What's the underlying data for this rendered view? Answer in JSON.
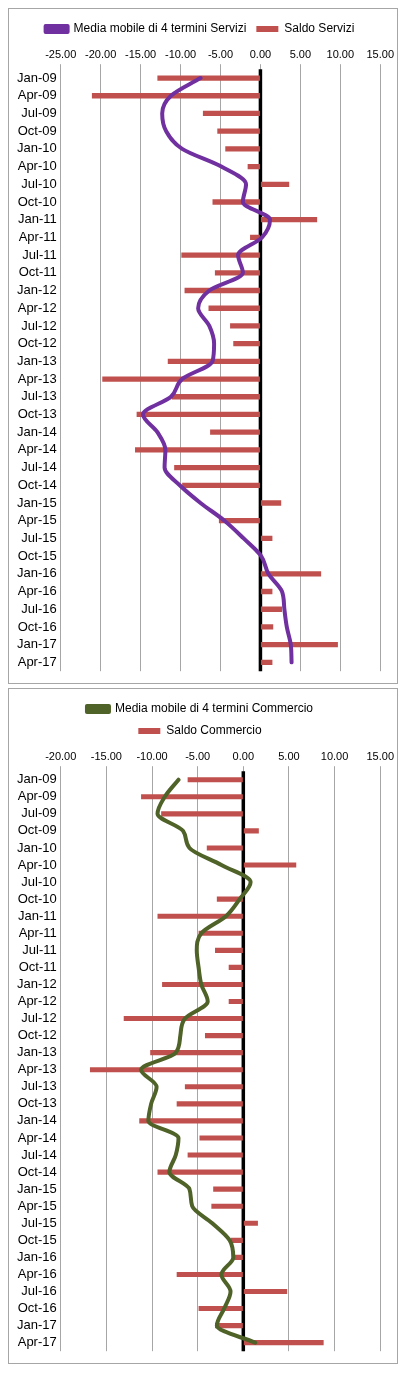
{
  "chart_data": [
    {
      "type": "bar",
      "orientation": "horizontal",
      "categories": [
        "Jan-09",
        "Apr-09",
        "Jul-09",
        "Oct-09",
        "Jan-10",
        "Apr-10",
        "Jul-10",
        "Oct-10",
        "Jan-11",
        "Apr-11",
        "Jul-11",
        "Oct-11",
        "Jan-12",
        "Apr-12",
        "Jul-12",
        "Oct-12",
        "Jan-13",
        "Apr-13",
        "Jul-13",
        "Oct-13",
        "Jan-14",
        "Apr-14",
        "Jul-14",
        "Oct-14",
        "Jan-15",
        "Apr-15",
        "Jul-15",
        "Oct-15",
        "Jan-16",
        "Apr-16",
        "Jul-16",
        "Oct-16",
        "Jan-17",
        "Apr-17"
      ],
      "series": [
        {
          "name": "Saldo Servizi",
          "color": "#c0504d",
          "values": [
            -12.9,
            -21.1,
            -7.2,
            -5.4,
            -4.4,
            -1.6,
            3.6,
            -6.0,
            7.1,
            -1.3,
            -9.9,
            -5.7,
            -9.5,
            -6.5,
            -3.8,
            -3.4,
            -11.6,
            -19.8,
            -11.1,
            -15.5,
            -6.3,
            -15.7,
            -10.8,
            -9.8,
            2.6,
            -5.2,
            1.5,
            0,
            7.6,
            1.5,
            2.7,
            1.6,
            9.7,
            1.5
          ]
        },
        {
          "name": "Media mobile di 4 termini Servizi",
          "type": "line",
          "color": "#7030a0",
          "values": [
            -7.5,
            -11.2,
            -12.3,
            -11.8,
            -9.8,
            -4.9,
            -1.8,
            -2.2,
            1.2,
            0.2,
            -2.8,
            -2.2,
            -6.4,
            -7.8,
            -6.4,
            -5.8,
            -6.0,
            -9.8,
            -11.2,
            -14.7,
            -12.9,
            -11.9,
            -12.0,
            -10.1,
            -7.5,
            -4.5,
            -2.1,
            0.1,
            1.0,
            2.7,
            3.0,
            3.3,
            3.8,
            3.9
          ]
        }
      ],
      "xlim": [
        -25,
        15
      ],
      "xticks": [
        {
          "value": -25,
          "label": "-25.00"
        },
        {
          "value": -20,
          "label": "-20.00"
        },
        {
          "value": -15,
          "label": "-15.00"
        },
        {
          "value": -10,
          "label": "-10.00"
        },
        {
          "value": -5,
          "label": "-5.00"
        },
        {
          "value": 0,
          "label": "0.00"
        },
        {
          "value": 5,
          "label": "5.00"
        },
        {
          "value": 10,
          "label": "10.00"
        },
        {
          "value": 15,
          "label": "15.00"
        }
      ],
      "ref_lines": [
        {
          "axis": "x",
          "value": 0,
          "color": "#000000"
        }
      ],
      "grid": "x",
      "legend": "top",
      "marker": "none"
    },
    {
      "type": "bar",
      "orientation": "horizontal",
      "categories": [
        "Jan-09",
        "Apr-09",
        "Jul-09",
        "Oct-09",
        "Jan-10",
        "Apr-10",
        "Jul-10",
        "Oct-10",
        "Jan-11",
        "Apr-11",
        "Jul-11",
        "Oct-11",
        "Jan-12",
        "Apr-12",
        "Jul-12",
        "Oct-12",
        "Jan-13",
        "Apr-13",
        "Jul-13",
        "Oct-13",
        "Jan-14",
        "Apr-14",
        "Jul-14",
        "Oct-14",
        "Jan-15",
        "Apr-15",
        "Jul-15",
        "Oct-15",
        "Jan-16",
        "Apr-16",
        "Jul-16",
        "Oct-16",
        "Jan-17",
        "Apr-17"
      ],
      "series": [
        {
          "name": "Saldo Commercio",
          "color": "#c0504d",
          "values": [
            -6.1,
            -11.2,
            -9.0,
            1.7,
            -4.0,
            5.8,
            0,
            -2.9,
            -9.4,
            -4.9,
            -3.1,
            -1.6,
            -8.9,
            -1.6,
            -13.1,
            -4.2,
            -10.2,
            -16.8,
            -6.4,
            -7.3,
            -11.4,
            -4.8,
            -6.1,
            -9.4,
            -3.3,
            -3.5,
            1.6,
            -1.4,
            -1.0,
            -7.3,
            4.8,
            -4.9,
            -3.1,
            8.8
          ]
        },
        {
          "name": "Media mobile di 4 termini Commercio",
          "type": "line",
          "color": "#4f6228",
          "values": [
            -7.1,
            -8.6,
            -9.4,
            -6.6,
            -5.9,
            -2.4,
            0.8,
            -0.4,
            -1.9,
            -4.6,
            -5.1,
            -4.9,
            -4.6,
            -3.9,
            -6.4,
            -6.9,
            -7.4,
            -11.2,
            -9.5,
            -10.1,
            -10.4,
            -7.1,
            -7.4,
            -8.1,
            -5.9,
            -5.6,
            -3.4,
            -1.5,
            -1.1,
            -2.4,
            -1.4,
            -2.1,
            -2.9,
            1.3
          ]
        }
      ],
      "xlim": [
        -20,
        15
      ],
      "xticks": [
        {
          "value": -20,
          "label": "-20.00"
        },
        {
          "value": -15,
          "label": "-15.00"
        },
        {
          "value": -10,
          "label": "-10.00"
        },
        {
          "value": -5,
          "label": "-5.00"
        },
        {
          "value": 0,
          "label": "0.00"
        },
        {
          "value": 5,
          "label": "5.00"
        },
        {
          "value": 10,
          "label": "10.00"
        },
        {
          "value": 15,
          "label": "15.00"
        }
      ],
      "ref_lines": [
        {
          "axis": "x",
          "value": 0,
          "color": "#000000"
        }
      ],
      "grid": "x",
      "legend": "top",
      "marker": "none"
    }
  ]
}
